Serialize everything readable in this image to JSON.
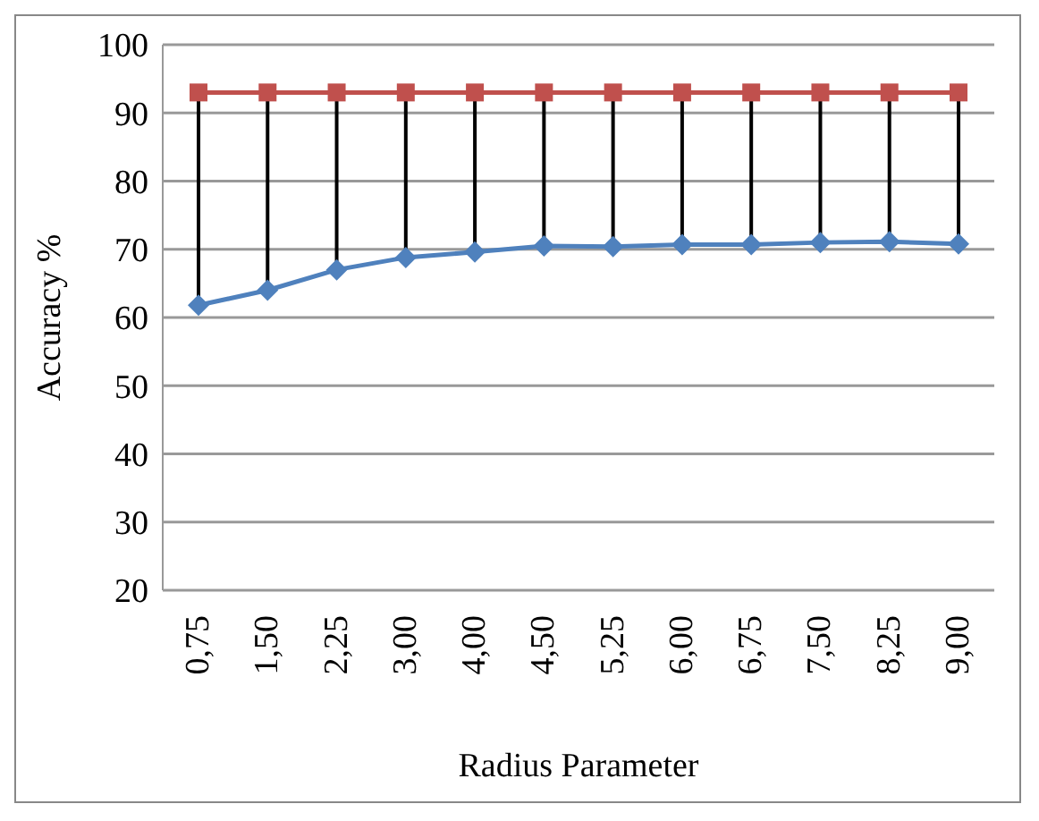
{
  "chart_data": {
    "type": "line",
    "xlabel": "Radius Parameter",
    "ylabel": "Accuracy %",
    "categories": [
      "0,75",
      "1,50",
      "2,25",
      "3,00",
      "4,00",
      "4,50",
      "5,25",
      "6,00",
      "6,75",
      "7,50",
      "8,25",
      "9,00"
    ],
    "series": [
      {
        "color": "#c0504d",
        "marker": "square",
        "values": [
          93,
          93,
          93,
          93,
          93,
          93,
          93,
          93,
          93,
          93,
          93,
          93
        ]
      },
      {
        "color": "#4f81bd",
        "marker": "diamond",
        "values": [
          61.8,
          64.0,
          67.0,
          68.8,
          69.6,
          70.5,
          70.4,
          70.7,
          70.7,
          71.0,
          71.1,
          70.8
        ]
      }
    ],
    "ylim": [
      20,
      100
    ],
    "yticks": [
      20,
      30,
      40,
      50,
      60,
      70,
      80,
      90,
      100
    ],
    "grid": "y",
    "legend": false
  }
}
